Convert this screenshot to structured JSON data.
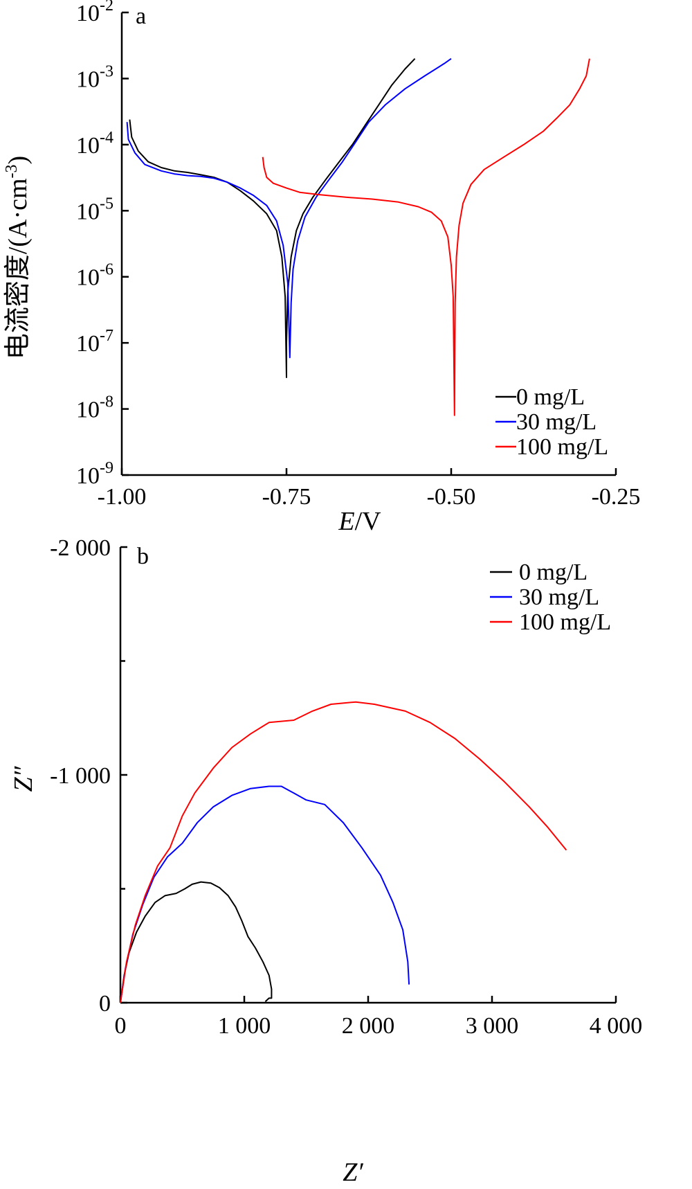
{
  "chart_data": [
    {
      "type": "line",
      "panel_label": "a",
      "xlabel_italic": "E",
      "xlabel_rest": "/V",
      "ylabel": "电流密度/(A·cm",
      "ylabel_sup": "-3",
      "ylabel_close": ")",
      "yscale": "log",
      "xlim": [
        -1.0,
        -0.25
      ],
      "ylim": [
        1e-09,
        0.01
      ],
      "xticks": [
        -1.0,
        -0.75,
        -0.5,
        -0.25
      ],
      "xtick_labels": [
        "-1.00",
        "-0.75",
        "-0.50",
        "-0.25"
      ],
      "yticks": [
        1e-09,
        1e-08,
        1e-07,
        1e-06,
        1e-05,
        0.0001,
        0.001,
        0.01
      ],
      "ytick_base": "10",
      "ytick_exps": [
        "-9",
        "-8",
        "-7",
        "-6",
        "-5",
        "-4",
        "-3",
        "-2"
      ],
      "legend_position": "bottom-right",
      "series": [
        {
          "name": "0 mg/L",
          "color": "#000000",
          "points": [
            [
              -0.988,
              0.00024
            ],
            [
              -0.985,
              0.00013
            ],
            [
              -0.975,
              8e-05
            ],
            [
              -0.96,
              5.5e-05
            ],
            [
              -0.94,
              4.5e-05
            ],
            [
              -0.92,
              4e-05
            ],
            [
              -0.9,
              3.8e-05
            ],
            [
              -0.88,
              3.5e-05
            ],
            [
              -0.86,
              3.2e-05
            ],
            [
              -0.84,
              2.7e-05
            ],
            [
              -0.82,
              2e-05
            ],
            [
              -0.8,
              1.4e-05
            ],
            [
              -0.78,
              9e-06
            ],
            [
              -0.765,
              5e-06
            ],
            [
              -0.757,
              2e-06
            ],
            [
              -0.752,
              5e-07
            ],
            [
              -0.75,
              3e-08
            ],
            [
              -0.75,
              1e-07
            ],
            [
              -0.748,
              6e-07
            ],
            [
              -0.743,
              2e-06
            ],
            [
              -0.735,
              5e-06
            ],
            [
              -0.725,
              9e-06
            ],
            [
              -0.71,
              1.6e-05
            ],
            [
              -0.69,
              3e-05
            ],
            [
              -0.67,
              5.5e-05
            ],
            [
              -0.65,
              0.0001
            ],
            [
              -0.63,
              0.0002
            ],
            [
              -0.61,
              0.0004
            ],
            [
              -0.59,
              0.0008
            ],
            [
              -0.57,
              0.0014
            ],
            [
              -0.555,
              0.002
            ]
          ]
        },
        {
          "name": "30 mg/L",
          "color": "#0000ff",
          "points": [
            [
              -0.992,
              0.00022
            ],
            [
              -0.99,
              0.00012
            ],
            [
              -0.98,
              7.5e-05
            ],
            [
              -0.965,
              5e-05
            ],
            [
              -0.94,
              4e-05
            ],
            [
              -0.92,
              3.6e-05
            ],
            [
              -0.9,
              3.4e-05
            ],
            [
              -0.88,
              3.3e-05
            ],
            [
              -0.86,
              3.1e-05
            ],
            [
              -0.84,
              2.7e-05
            ],
            [
              -0.82,
              2.2e-05
            ],
            [
              -0.8,
              1.7e-05
            ],
            [
              -0.78,
              1.2e-05
            ],
            [
              -0.765,
              7e-06
            ],
            [
              -0.755,
              3e-06
            ],
            [
              -0.748,
              8e-07
            ],
            [
              -0.745,
              6e-08
            ],
            [
              -0.743,
              4e-07
            ],
            [
              -0.74,
              1.3e-06
            ],
            [
              -0.733,
              3.5e-06
            ],
            [
              -0.722,
              8e-06
            ],
            [
              -0.705,
              1.6e-05
            ],
            [
              -0.685,
              3e-05
            ],
            [
              -0.665,
              5.5e-05
            ],
            [
              -0.645,
              0.00011
            ],
            [
              -0.625,
              0.00022
            ],
            [
              -0.6,
              0.0004
            ],
            [
              -0.57,
              0.0007
            ],
            [
              -0.54,
              0.0011
            ],
            [
              -0.51,
              0.0017
            ],
            [
              -0.5,
              0.002
            ]
          ]
        },
        {
          "name": "100 mg/L",
          "color": "#ff0000",
          "points": [
            [
              -0.786,
              6.5e-05
            ],
            [
              -0.784,
              4.5e-05
            ],
            [
              -0.78,
              3.2e-05
            ],
            [
              -0.77,
              2.6e-05
            ],
            [
              -0.75,
              2.2e-05
            ],
            [
              -0.73,
              1.9e-05
            ],
            [
              -0.7,
              1.75e-05
            ],
            [
              -0.66,
              1.6e-05
            ],
            [
              -0.62,
              1.5e-05
            ],
            [
              -0.58,
              1.35e-05
            ],
            [
              -0.55,
              1.15e-05
            ],
            [
              -0.53,
              9.5e-06
            ],
            [
              -0.515,
              7e-06
            ],
            [
              -0.505,
              4e-06
            ],
            [
              -0.5,
              1.5e-06
            ],
            [
              -0.497,
              5e-07
            ],
            [
              -0.495,
              8e-09
            ],
            [
              -0.494,
              4e-07
            ],
            [
              -0.492,
              2e-06
            ],
            [
              -0.488,
              6e-06
            ],
            [
              -0.482,
              1.3e-05
            ],
            [
              -0.47,
              2.5e-05
            ],
            [
              -0.45,
              4.2e-05
            ],
            [
              -0.42,
              6.5e-05
            ],
            [
              -0.39,
              0.0001
            ],
            [
              -0.36,
              0.00016
            ],
            [
              -0.34,
              0.00025
            ],
            [
              -0.32,
              0.0004
            ],
            [
              -0.305,
              0.0007
            ],
            [
              -0.295,
              0.0011
            ],
            [
              -0.29,
              0.002
            ]
          ]
        }
      ]
    },
    {
      "type": "line",
      "panel_label": "b",
      "xlabel": "Z′",
      "ylabel": "Z″",
      "xlim": [
        0,
        4000
      ],
      "ylim": [
        0,
        -2000
      ],
      "xticks": [
        0,
        1000,
        2000,
        3000,
        4000
      ],
      "xtick_labels": [
        "0",
        "1 000",
        "2 000",
        "3 000",
        "4 000"
      ],
      "yticks": [
        0,
        -1000,
        -2000
      ],
      "ytick_labels": [
        "0",
        "-1 000",
        "-2 000"
      ],
      "minor_yticks": [
        -500,
        -1500
      ],
      "legend_position": "top-right",
      "series": [
        {
          "name": "0 mg/L",
          "color": "#000000",
          "points": [
            [
              0,
              0
            ],
            [
              30,
              -120
            ],
            [
              70,
              -220
            ],
            [
              130,
              -310
            ],
            [
              200,
              -380
            ],
            [
              280,
              -440
            ],
            [
              360,
              -470
            ],
            [
              450,
              -480
            ],
            [
              520,
              -500
            ],
            [
              580,
              -520
            ],
            [
              650,
              -530
            ],
            [
              730,
              -525
            ],
            [
              800,
              -505
            ],
            [
              870,
              -470
            ],
            [
              930,
              -420
            ],
            [
              980,
              -360
            ],
            [
              1030,
              -290
            ],
            [
              1090,
              -240
            ],
            [
              1150,
              -180
            ],
            [
              1200,
              -120
            ],
            [
              1220,
              -60
            ],
            [
              1220,
              -20
            ],
            [
              1200,
              -20
            ],
            [
              1170,
              -5
            ]
          ]
        },
        {
          "name": "30 mg/L",
          "color": "#0000ff",
          "points": [
            [
              0,
              0
            ],
            [
              40,
              -150
            ],
            [
              100,
              -300
            ],
            [
              180,
              -430
            ],
            [
              270,
              -550
            ],
            [
              380,
              -640
            ],
            [
              500,
              -700
            ],
            [
              620,
              -790
            ],
            [
              750,
              -860
            ],
            [
              900,
              -910
            ],
            [
              1050,
              -940
            ],
            [
              1200,
              -950
            ],
            [
              1300,
              -950
            ],
            [
              1400,
              -920
            ],
            [
              1500,
              -890
            ],
            [
              1650,
              -870
            ],
            [
              1800,
              -790
            ],
            [
              1950,
              -680
            ],
            [
              2100,
              -560
            ],
            [
              2200,
              -440
            ],
            [
              2280,
              -320
            ],
            [
              2320,
              -180
            ],
            [
              2330,
              -80
            ]
          ]
        },
        {
          "name": "100 mg/L",
          "color": "#ff0000",
          "points": [
            [
              0,
              0
            ],
            [
              50,
              -180
            ],
            [
              120,
              -340
            ],
            [
              200,
              -470
            ],
            [
              300,
              -600
            ],
            [
              400,
              -680
            ],
            [
              500,
              -820
            ],
            [
              600,
              -920
            ],
            [
              750,
              -1030
            ],
            [
              900,
              -1120
            ],
            [
              1050,
              -1180
            ],
            [
              1200,
              -1230
            ],
            [
              1400,
              -1240
            ],
            [
              1550,
              -1280
            ],
            [
              1700,
              -1310
            ],
            [
              1900,
              -1320
            ],
            [
              2050,
              -1310
            ],
            [
              2300,
              -1280
            ],
            [
              2500,
              -1230
            ],
            [
              2700,
              -1160
            ],
            [
              2900,
              -1070
            ],
            [
              3100,
              -970
            ],
            [
              3300,
              -860
            ],
            [
              3450,
              -770
            ],
            [
              3600,
              -670
            ]
          ]
        }
      ]
    }
  ]
}
